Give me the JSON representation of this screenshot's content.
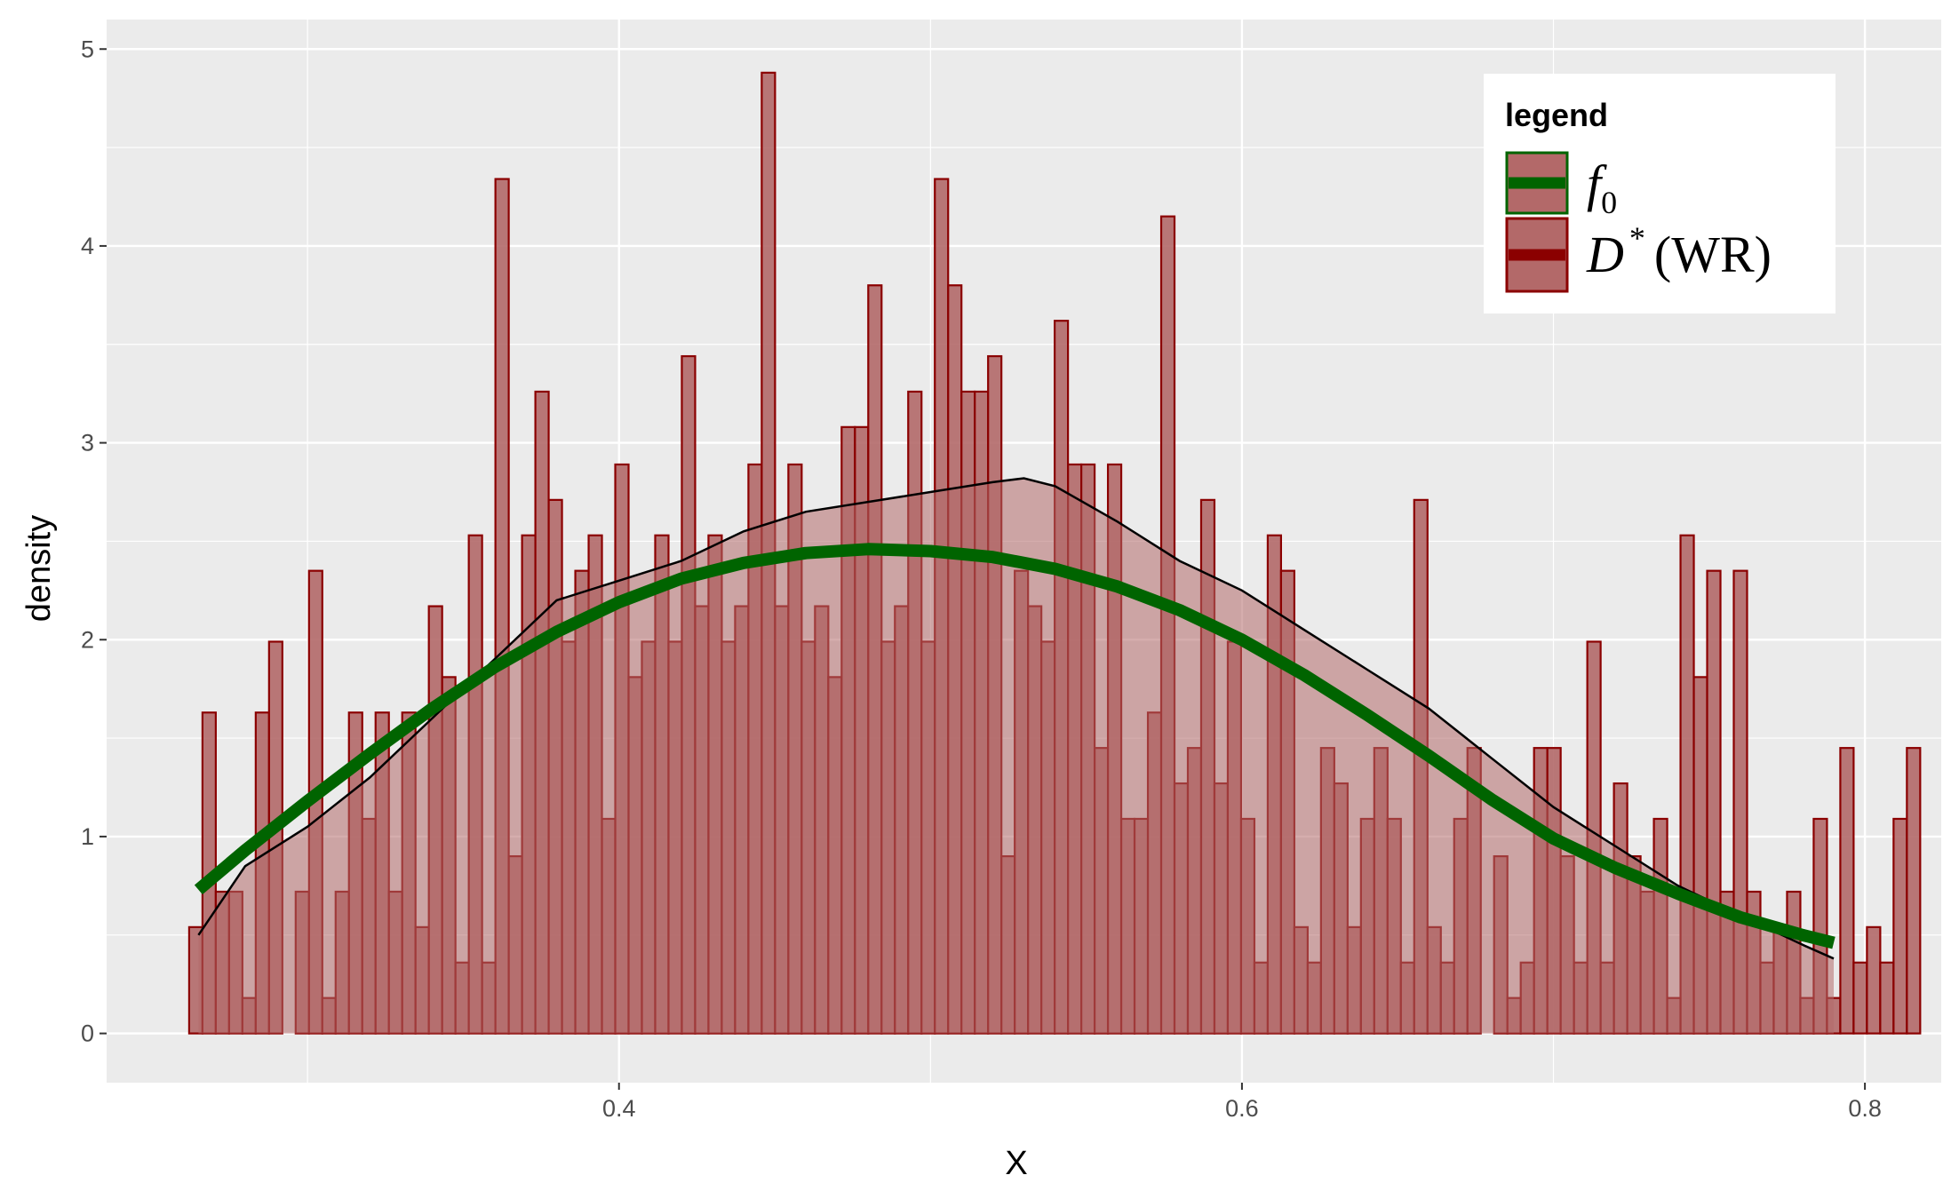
{
  "chart_data": {
    "type": "histogram",
    "xlabel": "X",
    "ylabel": "density",
    "xlim": [
      0.2355,
      0.8245
    ],
    "ylim": [
      -0.25,
      5.15
    ],
    "x_ticks": [
      0.4,
      0.6,
      0.8
    ],
    "x_tick_labels": [
      "0.4",
      "0.6",
      "0.8"
    ],
    "y_ticks": [
      0,
      1,
      2,
      3,
      4,
      5
    ],
    "y_tick_labels": [
      "0",
      "1",
      "2",
      "3",
      "4",
      "5"
    ],
    "grid": true,
    "background": "#ebebeb",
    "bins": {
      "start": 0.262,
      "width": 0.004275,
      "count": 130
    },
    "series": [
      {
        "name": "f_0",
        "kind": "line",
        "color": "#006400",
        "x": [
          0.265,
          0.28,
          0.3,
          0.32,
          0.34,
          0.36,
          0.38,
          0.4,
          0.42,
          0.44,
          0.46,
          0.48,
          0.5,
          0.52,
          0.54,
          0.56,
          0.58,
          0.6,
          0.62,
          0.64,
          0.66,
          0.68,
          0.7,
          0.72,
          0.74,
          0.76,
          0.78,
          0.79
        ],
        "values": [
          0.73,
          0.93,
          1.18,
          1.42,
          1.65,
          1.86,
          2.04,
          2.19,
          2.31,
          2.39,
          2.44,
          2.46,
          2.45,
          2.42,
          2.36,
          2.27,
          2.15,
          2.0,
          1.82,
          1.62,
          1.41,
          1.19,
          0.99,
          0.84,
          0.71,
          0.59,
          0.5,
          0.46
        ]
      },
      {
        "name": "D* (WR)",
        "kind": "histogram",
        "color": "#8b0000",
        "fill": "#b36969",
        "density_curve": {
          "x": [
            0.265,
            0.28,
            0.3,
            0.32,
            0.34,
            0.36,
            0.38,
            0.4,
            0.42,
            0.44,
            0.46,
            0.48,
            0.5,
            0.52,
            0.53,
            0.54,
            0.56,
            0.58,
            0.6,
            0.62,
            0.64,
            0.66,
            0.68,
            0.7,
            0.72,
            0.74,
            0.76,
            0.78,
            0.79
          ],
          "y": [
            0.5,
            0.85,
            1.05,
            1.3,
            1.6,
            1.9,
            2.2,
            2.3,
            2.4,
            2.55,
            2.65,
            2.7,
            2.75,
            2.8,
            2.82,
            2.78,
            2.6,
            2.4,
            2.25,
            2.05,
            1.85,
            1.65,
            1.4,
            1.15,
            0.95,
            0.75,
            0.6,
            0.45,
            0.38
          ]
        },
        "values": [
          0.54,
          1.63,
          0.72,
          0.72,
          0.18,
          1.63,
          1.99,
          0.0,
          0.72,
          2.35,
          0.18,
          0.72,
          1.63,
          1.09,
          1.63,
          0.72,
          1.63,
          0.54,
          2.17,
          1.81,
          0.36,
          2.53,
          0.36,
          4.34,
          0.9,
          2.53,
          3.26,
          2.71,
          1.99,
          2.35,
          2.53,
          1.09,
          2.89,
          1.81,
          1.99,
          2.53,
          1.99,
          3.44,
          2.17,
          2.53,
          1.99,
          2.17,
          2.89,
          4.88,
          2.17,
          2.89,
          1.99,
          2.17,
          1.81,
          3.08,
          3.08,
          3.8,
          1.99,
          2.17,
          3.26,
          1.99,
          4.34,
          3.8,
          3.26,
          3.26,
          3.44,
          0.9,
          2.35,
          2.17,
          1.99,
          3.62,
          2.89,
          2.89,
          1.45,
          2.89,
          1.09,
          1.09,
          1.63,
          4.15,
          1.27,
          1.45,
          2.71,
          1.27,
          1.99,
          1.09,
          0.36,
          2.53,
          2.35,
          0.54,
          0.36,
          1.45,
          1.27,
          0.54,
          1.09,
          1.45,
          1.09,
          0.36,
          2.71,
          0.54,
          0.36,
          1.09,
          1.45,
          0.0,
          0.9,
          0.18,
          0.36,
          1.45,
          1.45,
          0.9,
          0.36,
          1.99,
          0.36,
          1.27,
          0.9,
          0.72,
          1.09,
          0.18,
          2.53,
          1.81,
          2.35,
          0.72,
          2.35,
          0.72,
          0.36,
          0.54,
          0.72,
          0.18,
          1.09,
          0.18,
          1.45,
          0.36,
          0.54,
          0.36,
          1.09,
          1.45
        ]
      }
    ],
    "legend": {
      "title": "legend",
      "position": "top-right",
      "entries": [
        {
          "symbol": "f",
          "subscript": "0",
          "label": "f_0",
          "line_color": "#006400",
          "border_color": "#006400"
        },
        {
          "symbol": "D",
          "superscript": "*",
          "suffix": "(WR)",
          "label": "D* (WR)",
          "line_color": "#8b0000",
          "border_color": "#8b0000"
        }
      ]
    }
  }
}
